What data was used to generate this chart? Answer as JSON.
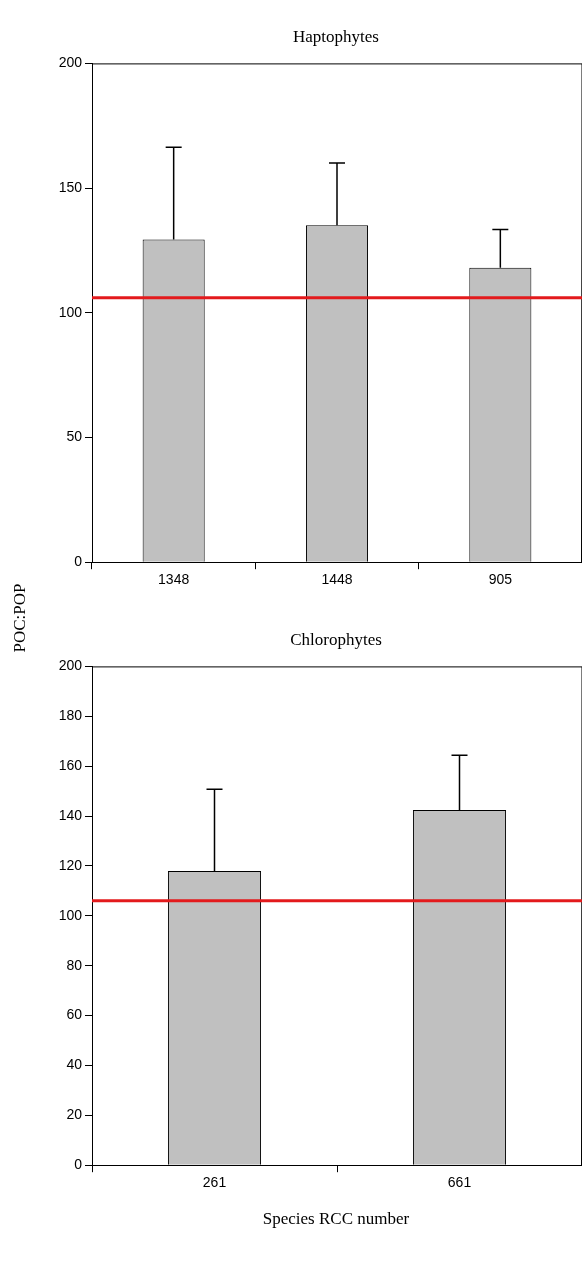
{
  "chart_data": [
    {
      "type": "bar",
      "title": "Haptophytes",
      "ylabel": "POC:POP",
      "categories": [
        "1348",
        "1448",
        "905"
      ],
      "values": [
        129.4,
        135.1,
        118.1
      ],
      "errors": [
        [
          129.4,
          166.4
        ],
        [
          135.1,
          160.1
        ],
        [
          118.1,
          133.4
        ]
      ],
      "color": "#c0c0c0",
      "ylim": [
        0,
        200
      ],
      "yticks": [
        0,
        50,
        100,
        150,
        200
      ],
      "ref_lines": [
        {
          "axis": "y",
          "value": 106,
          "color": "#e31a1c"
        }
      ]
    },
    {
      "type": "bar",
      "title": "Chlorophytes",
      "xlabel": "Species RCC number",
      "categories": [
        "261",
        "661"
      ],
      "values": [
        118,
        142.4
      ],
      "errors": [
        [
          118,
          150.7
        ],
        [
          142.4,
          164.4
        ]
      ],
      "color": "#c0c0c0",
      "ylim": [
        0,
        200
      ],
      "yticks": [
        0,
        20,
        40,
        60,
        80,
        100,
        120,
        140,
        160,
        180,
        200
      ],
      "ref_lines": [
        {
          "axis": "y",
          "value": 106,
          "color": "#e31a1c"
        }
      ]
    }
  ]
}
